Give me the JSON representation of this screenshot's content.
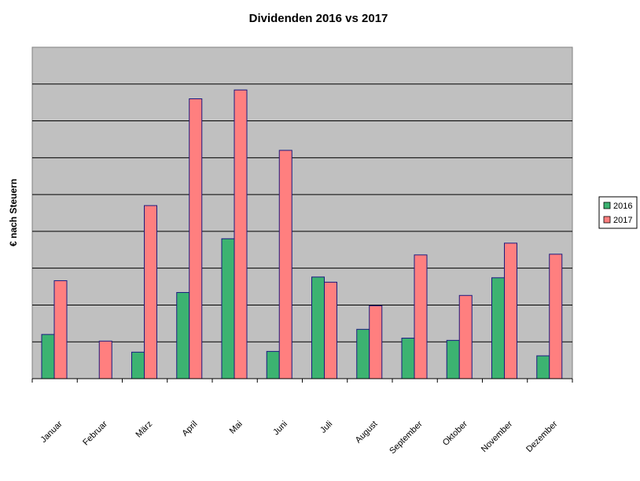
{
  "chart_data": {
    "type": "bar",
    "title": "Dividenden 2016 vs 2017",
    "xlabel": "",
    "ylabel": "€ nach Steuern",
    "categories": [
      "Januar",
      "Februar",
      "März",
      "April",
      "Mai",
      "Juni",
      "Juli",
      "August",
      "September",
      "Oktober",
      "November",
      "Dezember"
    ],
    "series": [
      {
        "name": "2016",
        "color": "#3cb371",
        "values": [
          0.6,
          0.0,
          0.36,
          1.17,
          1.9,
          0.37,
          1.38,
          0.67,
          0.55,
          0.52,
          1.37,
          0.31
        ]
      },
      {
        "name": "2017",
        "color": "#ff7f7f",
        "values": [
          1.33,
          0.51,
          2.35,
          3.8,
          3.92,
          3.1,
          1.31,
          0.99,
          1.68,
          1.13,
          1.84,
          1.69
        ]
      }
    ],
    "ylim": [
      0,
      4.5
    ],
    "gridlines": 9,
    "grid": true,
    "plot_background": "#c0c0c0",
    "legend_position": "right"
  }
}
